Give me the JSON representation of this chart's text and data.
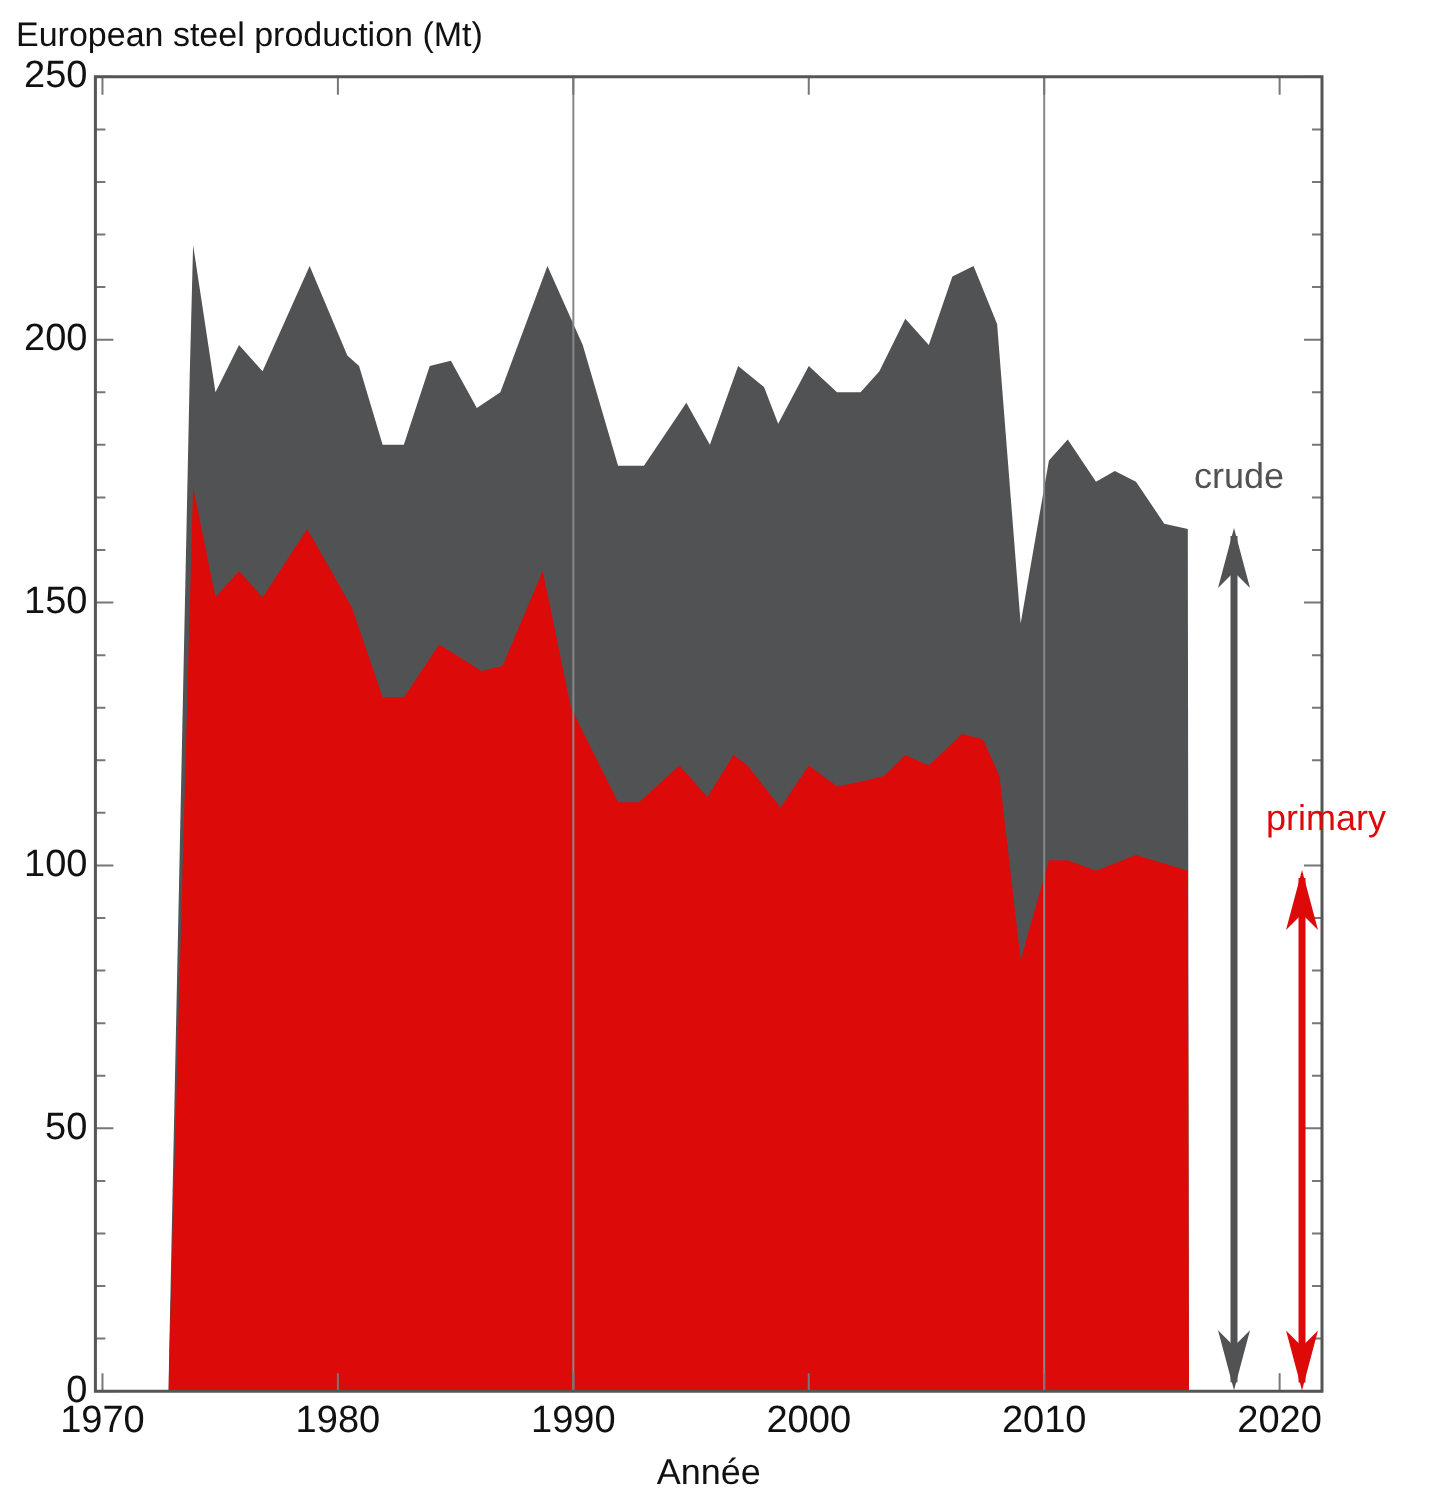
{
  "chart_data": {
    "type": "area",
    "title": "European steel production (Mt)",
    "xlabel": "Année",
    "xlim": [
      1969.7,
      2021.8
    ],
    "xticks": [
      1970,
      1980,
      1990,
      2000,
      2010,
      2020
    ],
    "ylim": [
      0,
      250
    ],
    "yticks": [
      0,
      {
        "value": 10,
        "label": null
      },
      {
        "value": 20,
        "label": null
      },
      {
        "value": 30,
        "label": null
      },
      {
        "value": 40,
        "label": null
      },
      50,
      {
        "value": 60,
        "label": null
      },
      {
        "value": 70,
        "label": null
      },
      {
        "value": 80,
        "label": null
      },
      {
        "value": 90,
        "label": null
      },
      100,
      {
        "value": 110,
        "label": null
      },
      {
        "value": 120,
        "label": null
      },
      {
        "value": 130,
        "label": null
      },
      {
        "value": 140,
        "label": null
      },
      150,
      {
        "value": 160,
        "label": null
      },
      {
        "value": 170,
        "label": null
      },
      {
        "value": 180,
        "label": null
      },
      {
        "value": 190,
        "label": null
      },
      200,
      {
        "value": 210,
        "label": null
      },
      {
        "value": 220,
        "label": null
      },
      {
        "value": 230,
        "label": null
      },
      {
        "value": 240,
        "label": null
      },
      250
    ],
    "grid": false,
    "legend": false,
    "ref_lines": [
      {
        "axis": "x",
        "value": 1990,
        "color": "#888888"
      },
      {
        "axis": "x",
        "value": 2010,
        "color": "#888888"
      }
    ],
    "series": [
      {
        "name": "crude",
        "color": "#505254",
        "x": [
          1972.8,
          1973.7,
          1973.85,
          1974.8,
          1975.8,
          1976.8,
          1978.8,
          1980.4,
          1980.9,
          1981.9,
          1982.8,
          1983.9,
          1984.8,
          1985.9,
          1986.9,
          1988.9,
          1990.4,
          1991.9,
          1993.0,
          1994.8,
          1995.8,
          1997.0,
          1998.1,
          1998.7,
          2000.0,
          2001.2,
          2002.2,
          2003.0,
          2004.1,
          2005.1,
          2006.1,
          2007.0,
          2008.0,
          2009.0,
          2010.2,
          2011.0,
          2012.2,
          2013.0,
          2013.9,
          2015.1,
          2016.1,
          2016.15
        ],
        "values": [
          0,
          192,
          218,
          190,
          199,
          194,
          214,
          197,
          195,
          180,
          180,
          195,
          196,
          187,
          190,
          214,
          199,
          176,
          176,
          188,
          180,
          195,
          191,
          184,
          195,
          190,
          190,
          194,
          204,
          199,
          212,
          214,
          203,
          146,
          177,
          181,
          173,
          175,
          173,
          165,
          164,
          0
        ]
      },
      {
        "name": "primary",
        "color": "#dd0a0a",
        "x": [
          1972.8,
          1973.85,
          1974.8,
          1975.8,
          1976.8,
          1978.7,
          1980.6,
          1981.9,
          1982.8,
          1984.3,
          1986.1,
          1987.0,
          1988.7,
          1989.9,
          1991.9,
          1992.8,
          1994.5,
          1995.7,
          1996.8,
          1997.4,
          1998.8,
          2000.0,
          2001.2,
          2002.3,
          2003.2,
          2004.1,
          2005.1,
          2006.5,
          2007.4,
          2008.1,
          2009.0,
          2010.2,
          2011.0,
          2012.2,
          2013.9,
          2016.1,
          2016.15
        ],
        "values": [
          0,
          172,
          151,
          156,
          151,
          164,
          149,
          132,
          132,
          142,
          137,
          138,
          156,
          130,
          112,
          112,
          119,
          113,
          121,
          119,
          111,
          119,
          115,
          116,
          117,
          121,
          119,
          125,
          124,
          117,
          82,
          101,
          101,
          99,
          102,
          99,
          0
        ]
      }
    ]
  }
}
